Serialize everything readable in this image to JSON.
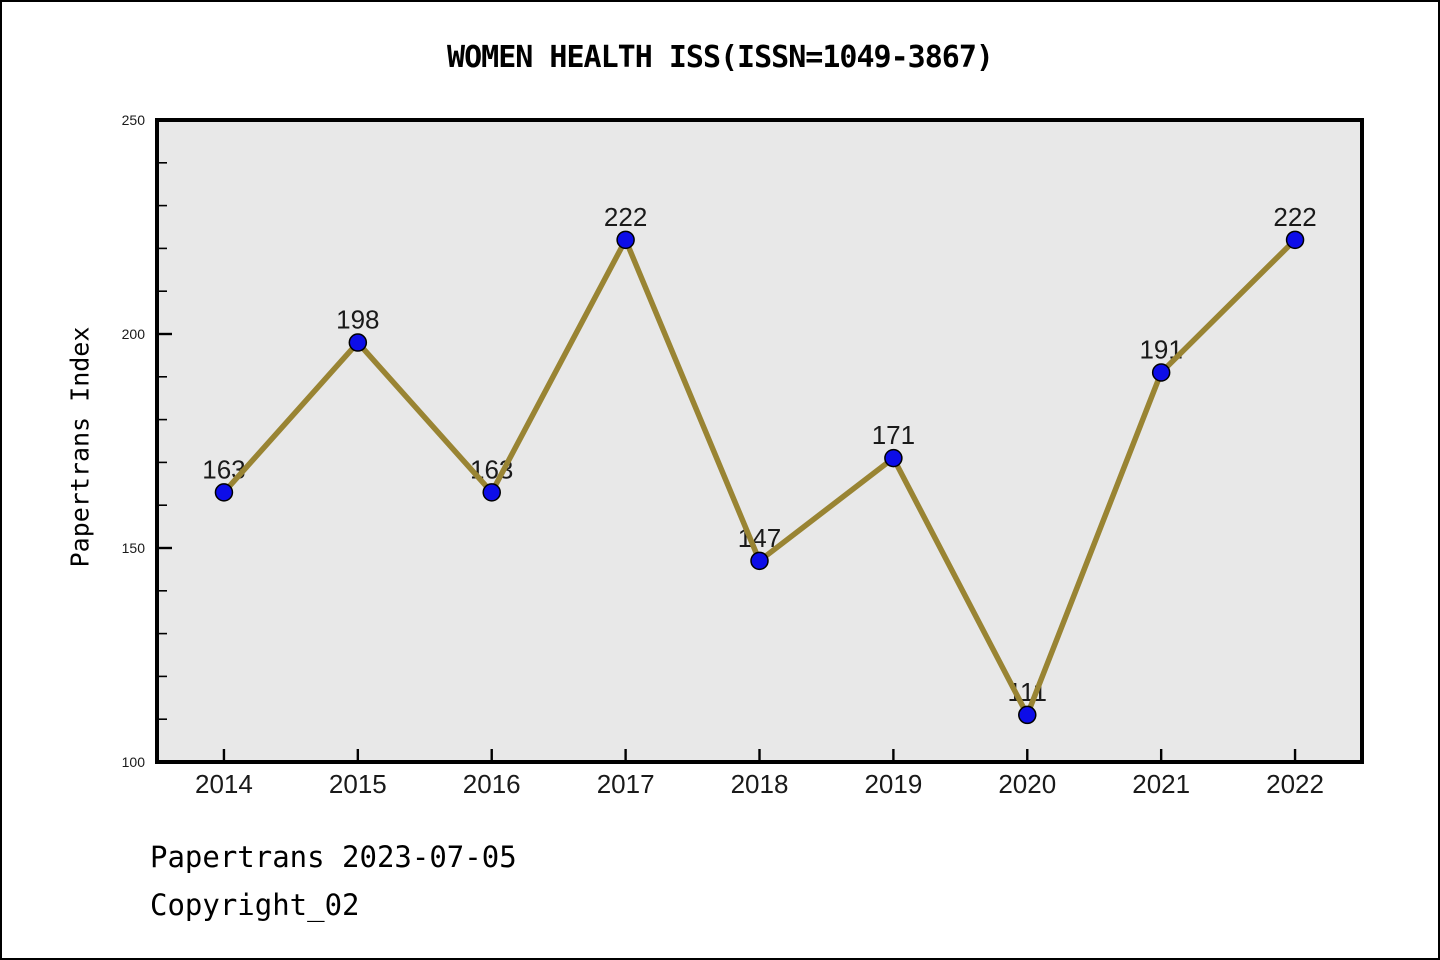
{
  "chart_data": {
    "type": "line",
    "title": "WOMEN HEALTH ISS(ISSN=1049-3867)",
    "xlabel": "",
    "ylabel": "Papertrans Index",
    "categories": [
      2014,
      2015,
      2016,
      2017,
      2018,
      2019,
      2020,
      2021,
      2022
    ],
    "values": [
      163,
      198,
      163,
      222,
      147,
      171,
      111,
      191,
      222
    ],
    "ylim": [
      100,
      250
    ],
    "yticks": [
      100,
      150,
      200,
      250
    ],
    "minor_tick_step": 10,
    "xlim": [
      2013.5,
      2022.5
    ],
    "grid": false,
    "legend": "none",
    "line_color": "#998433",
    "marker_color": "#0d0de8",
    "marker_edge_color": "#000000",
    "plot_bg": "#e8e8e8",
    "axis_color": "#000000",
    "tick_label_color": "#1a1a1a",
    "value_label_color": "#1a1a1a"
  },
  "footer": {
    "line1": "Papertrans 2023-07-05",
    "line2": "Copyright_02"
  }
}
